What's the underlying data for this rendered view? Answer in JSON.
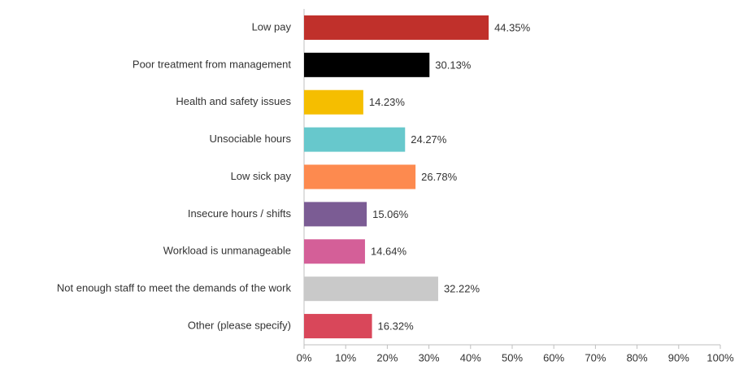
{
  "chart_data": {
    "type": "bar",
    "orientation": "horizontal",
    "categories": [
      "Low pay",
      "Poor treatment from management",
      "Health and safety issues",
      "Unsociable hours",
      "Low sick pay",
      "Insecure hours / shifts",
      "Workload is unmanageable",
      "Not enough staff to meet the demands of the work",
      "Other (please specify)"
    ],
    "values": [
      44.35,
      30.13,
      14.23,
      24.27,
      26.78,
      15.06,
      14.64,
      32.22,
      16.32
    ],
    "value_labels": [
      "44.35%",
      "30.13%",
      "14.23%",
      "24.27%",
      "26.78%",
      "15.06%",
      "14.64%",
      "32.22%",
      "16.32%"
    ],
    "colors": [
      "#c0302b",
      "#000000",
      "#f5be00",
      "#67c8cc",
      "#fd8a4f",
      "#7b5c94",
      "#d45f98",
      "#c9c9c9",
      "#d9475a"
    ],
    "xlim": [
      0,
      100
    ],
    "xticks": [
      {
        "value": 0,
        "label": "0%"
      },
      {
        "value": 10,
        "label": "10%"
      },
      {
        "value": 20,
        "label": "20%"
      },
      {
        "value": 30,
        "label": "30%"
      },
      {
        "value": 40,
        "label": "40%"
      },
      {
        "value": 50,
        "label": "50%"
      },
      {
        "value": 60,
        "label": "60%"
      },
      {
        "value": 70,
        "label": "70%"
      },
      {
        "value": 80,
        "label": "80%"
      },
      {
        "value": 90,
        "label": "90%"
      },
      {
        "value": 100,
        "label": "100%"
      }
    ],
    "grid": false
  }
}
